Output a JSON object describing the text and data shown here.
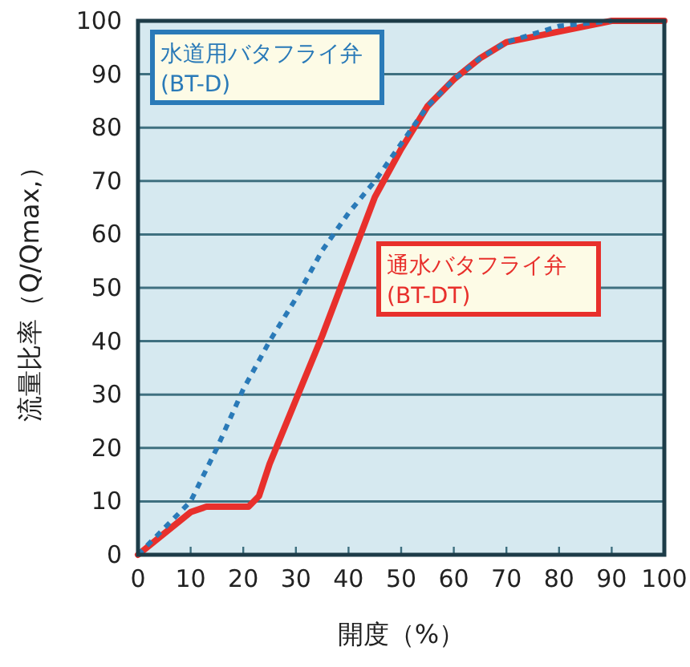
{
  "chart_data": {
    "type": "line",
    "xlabel": "開度（%）",
    "ylabel": "流量比率（Q/Qmax,）",
    "xlim": [
      0,
      100
    ],
    "ylim": [
      0,
      100
    ],
    "xticks": [
      0,
      10,
      20,
      30,
      40,
      50,
      60,
      70,
      80,
      90,
      100
    ],
    "yticks": [
      0,
      10,
      20,
      30,
      40,
      50,
      60,
      70,
      80,
      90,
      100
    ],
    "grid": "y",
    "series": [
      {
        "name": "水道用バタフライ弁\n(BT-D)",
        "color": "#2a7ab8",
        "line_style": "dotted",
        "x": [
          0,
          5,
          10,
          15,
          20,
          25,
          30,
          35,
          40,
          45,
          50,
          55,
          60,
          65,
          70,
          80,
          90
        ],
        "values": [
          0,
          5,
          10,
          20,
          31,
          40,
          48,
          57,
          64,
          70,
          77,
          84,
          89,
          93,
          96,
          99,
          100
        ]
      },
      {
        "name": "通水バタフライ弁\n(BT-DT)",
        "color": "#e8302c",
        "line_style": "solid",
        "x": [
          0,
          5,
          10,
          13,
          21,
          23,
          25,
          30,
          35,
          40,
          45,
          50,
          55,
          60,
          65,
          70,
          80,
          90,
          100
        ],
        "values": [
          0,
          4,
          8,
          9,
          9,
          11,
          17,
          29,
          41,
          54,
          67,
          76,
          84,
          89,
          93,
          96,
          98,
          100,
          100
        ]
      }
    ]
  }
}
